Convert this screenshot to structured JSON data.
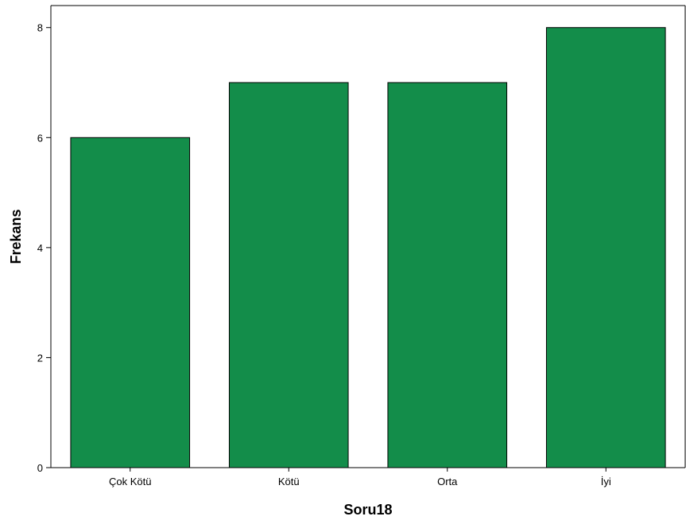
{
  "chart_data": {
    "type": "bar",
    "categories": [
      "Çok Kötü",
      "Kötü",
      "Orta",
      "İyi"
    ],
    "values": [
      6,
      7,
      7,
      8
    ],
    "title": "",
    "xlabel": "Soru18",
    "ylabel": "Frekans",
    "ylim": [
      0,
      8.4
    ],
    "yticks": [
      0,
      2,
      4,
      6,
      8
    ],
    "grid": false,
    "bar_color": "#138d4a",
    "bar_edge_color": "#000000"
  }
}
